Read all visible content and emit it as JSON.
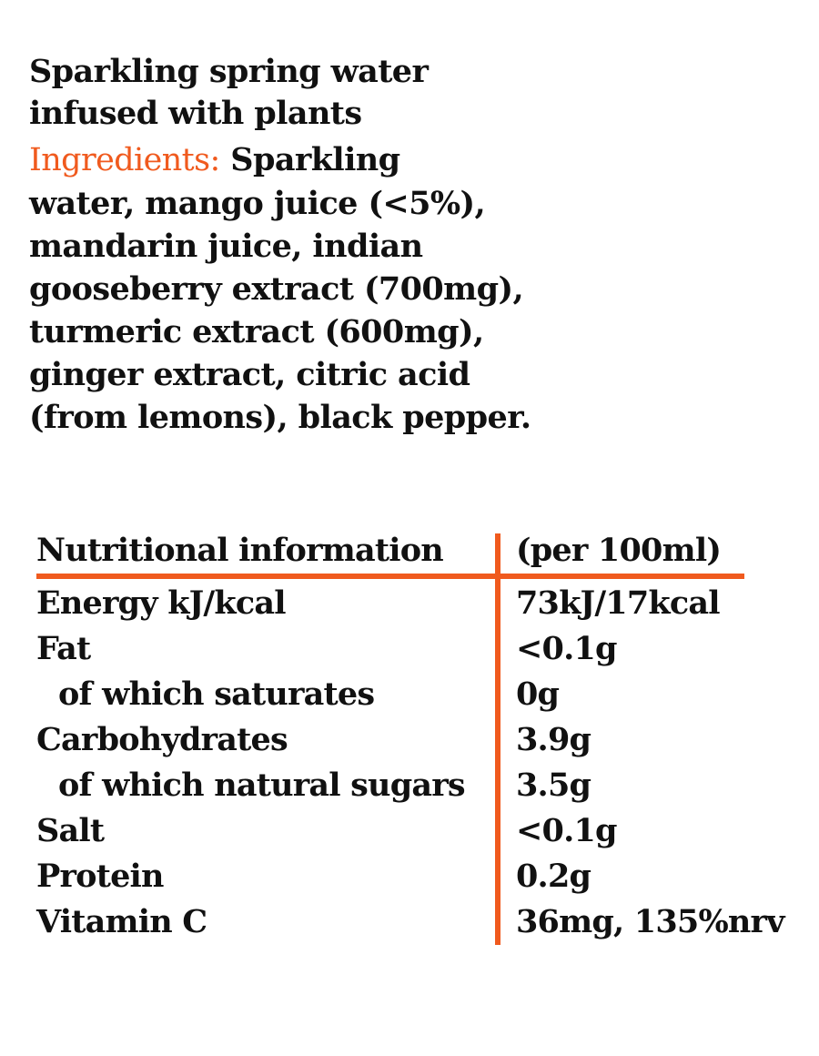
{
  "heading": {
    "lines": [
      "Sparkling spring water",
      "infused with plants"
    ]
  },
  "ingredients": {
    "label": "Ingredients:",
    "lines": [
      "Sparkling",
      "water, mango juice (<5%),",
      "mandarin juice, indian",
      "gooseberry extract (700mg),",
      "turmeric extract (600mg),",
      "ginger extract, citric acid",
      "(from lemons), black pepper."
    ]
  },
  "nutrition": {
    "header": {
      "name": "Nutritional information",
      "value": "(per 100ml)"
    },
    "rows": [
      {
        "name": "Energy kJ/kcal",
        "value": "73kJ/17kcal"
      },
      {
        "name": "Fat",
        "value": "<0.1g"
      },
      {
        "name": "of which saturates",
        "value": "0g"
      },
      {
        "name": "Carbohydrates",
        "value": "3.9g"
      },
      {
        "name": "of which natural sugars",
        "value": "3.5g"
      },
      {
        "name": "Salt",
        "value": "<0.1g"
      },
      {
        "name": "Protein",
        "value": "0.2g"
      },
      {
        "name": "Vitamin C",
        "value": "36mg, 135%nrv"
      }
    ]
  },
  "colors": {
    "accent": "#f05a1e",
    "text": "#111111",
    "background": "#ffffff"
  }
}
